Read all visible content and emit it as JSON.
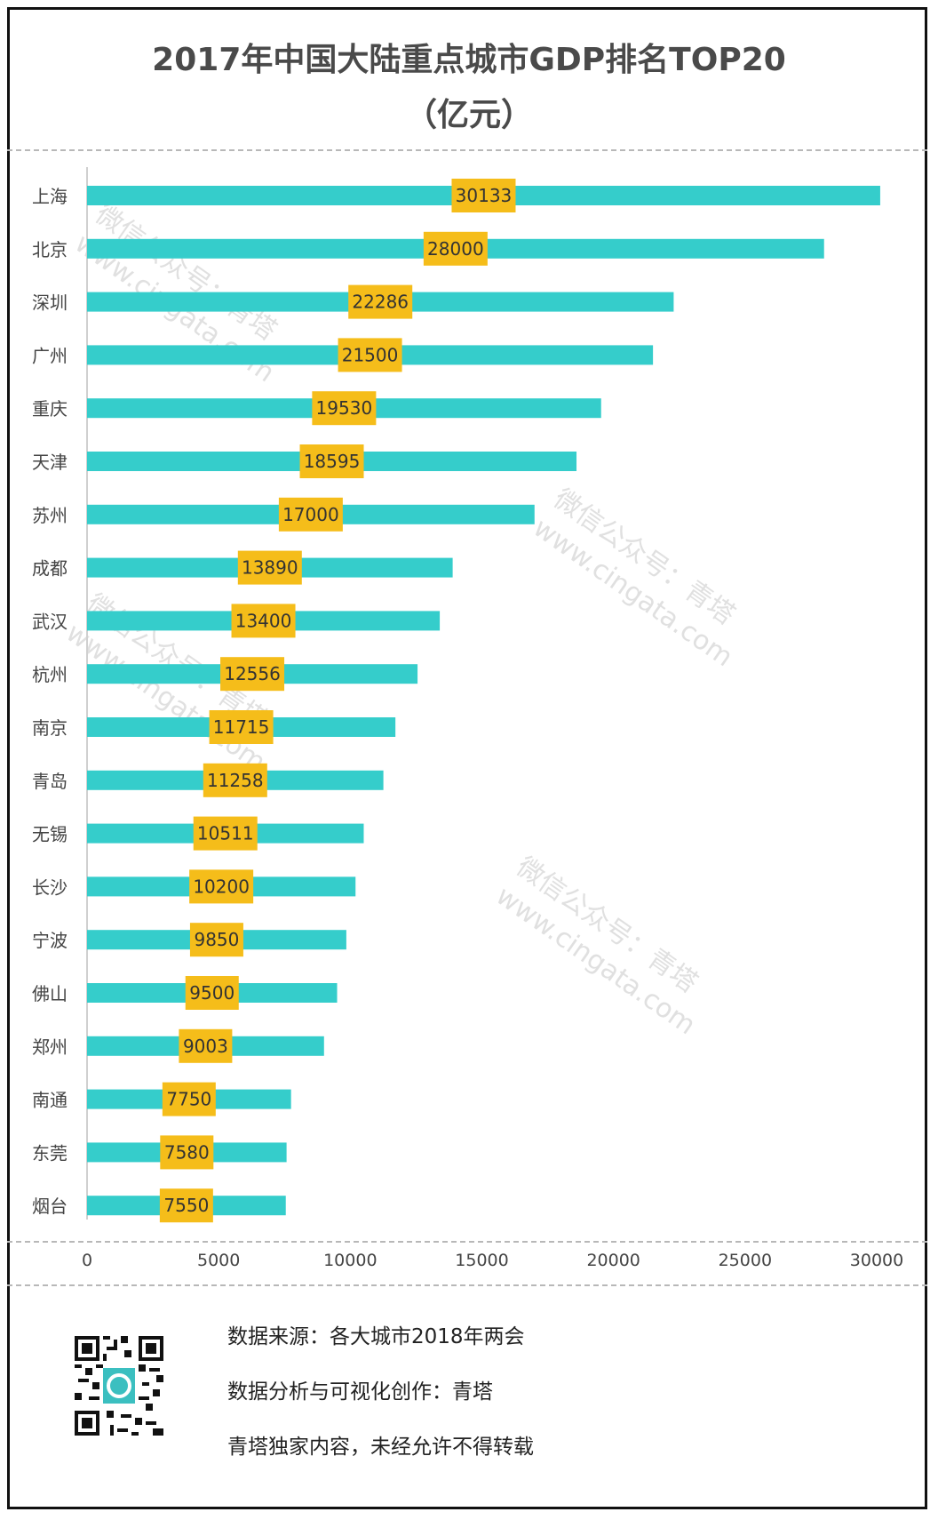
{
  "header": {
    "title_line1": "2017年中国大陆重点城市GDP排名TOP20",
    "title_line2": "（亿元）"
  },
  "chart_data": {
    "type": "bar",
    "orientation": "horizontal",
    "categories": [
      "上海",
      "北京",
      "深圳",
      "广州",
      "重庆",
      "天津",
      "苏州",
      "成都",
      "武汉",
      "杭州",
      "南京",
      "青岛",
      "无锡",
      "长沙",
      "宁波",
      "佛山",
      "郑州",
      "南通",
      "东莞",
      "烟台"
    ],
    "values": [
      30133,
      28000,
      22286,
      21500,
      19530,
      18595,
      17000,
      13890,
      13400,
      12556,
      11715,
      11258,
      10511,
      10200,
      9850,
      9500,
      9003,
      7750,
      7580,
      7550
    ],
    "xlim": [
      0,
      30000
    ],
    "xticks": [
      0,
      5000,
      10000,
      15000,
      20000,
      25000,
      30000
    ],
    "grid": false,
    "colors": {
      "bar": "#35cdcb",
      "label_bg": "#f5bd1a",
      "label_text": "#333333",
      "axis_text": "#444444"
    }
  },
  "watermark": {
    "line1": "微信公众号：青塔",
    "line2": "www.cingata.com"
  },
  "footer": {
    "source": "数据来源：各大城市2018年两会",
    "credit": "数据分析与可视化创作：青塔",
    "copyright": "青塔独家内容，未经允许不得转载",
    "qr_icon": "qr-code-icon"
  }
}
